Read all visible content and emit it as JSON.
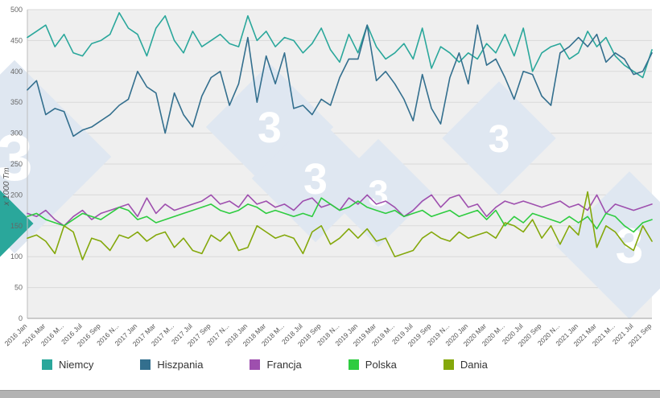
{
  "chart_data": {
    "type": "line",
    "title": "",
    "xlabel": "",
    "ylabel": "x 1000 Tm",
    "ylim": [
      0,
      500
    ],
    "y_ticks": [
      0,
      50,
      100,
      150,
      200,
      250,
      300,
      350,
      400,
      450,
      500
    ],
    "grid": true,
    "legend_position": "bottom",
    "categories": [
      "2016 Jan",
      "2016 Feb",
      "2016 Mar",
      "2016 Apr",
      "2016 May",
      "2016 Jun",
      "2016 Jul",
      "2016 Aug",
      "2016 Sep",
      "2016 Oct",
      "2016 Nov",
      "2016 Dec",
      "2017 Jan",
      "2017 Feb",
      "2017 Mar",
      "2017 Apr",
      "2017 May",
      "2017 Jun",
      "2017 Jul",
      "2017 Aug",
      "2017 Sep",
      "2017 Oct",
      "2017 Nov",
      "2017 Dec",
      "2018 Jan",
      "2018 Feb",
      "2018 Mar",
      "2018 Apr",
      "2018 May",
      "2018 Jun",
      "2018 Jul",
      "2018 Aug",
      "2018 Sep",
      "2018 Oct",
      "2018 Nov",
      "2018 Dec",
      "2019 Jan",
      "2019 Feb",
      "2019 Mar",
      "2019 Apr",
      "2019 May",
      "2019 Jun",
      "2019 Jul",
      "2019 Aug",
      "2019 Sep",
      "2019 Oct",
      "2019 Nov",
      "2019 Dec",
      "2020 Jan",
      "2020 Feb",
      "2020 Mar",
      "2020 Apr",
      "2020 May",
      "2020 Jun",
      "2020 Jul",
      "2020 Aug",
      "2020 Sep",
      "2020 Oct",
      "2020 Nov",
      "2020 Dec",
      "2021 Jan",
      "2021 Feb",
      "2021 Mar",
      "2021 Apr",
      "2021 May",
      "2021 Jun",
      "2021 Jul",
      "2021 Aug",
      "2021 Sep"
    ],
    "tick_labels": [
      "2016 Jan",
      "2016 Mar",
      "2016 M...",
      "2016 Jul",
      "2016 Sep",
      "2016 N...",
      "2017 Jan",
      "2017 Mar",
      "2017 M...",
      "2017 Jul",
      "2017 Sep",
      "2017 N...",
      "2018 Jan",
      "2018 Mar",
      "2018 M...",
      "2018 Jul",
      "2018 Sep",
      "2018 N...",
      "2019 Jan",
      "2019 Mar",
      "2019 M...",
      "2019 Jul",
      "2019 Sep",
      "2019 N...",
      "2020 Jan",
      "2020 Mar",
      "2020 M...",
      "2020 Jul",
      "2020 Sep",
      "2020 N...",
      "2021 Jan",
      "2021 Mar",
      "2021 M...",
      "2021 Jul",
      "2021 Sep"
    ],
    "series": [
      {
        "name": "Niemcy",
        "color": "#2aa79b",
        "values": [
          455,
          465,
          475,
          440,
          460,
          430,
          425,
          445,
          450,
          460,
          495,
          470,
          460,
          425,
          470,
          490,
          450,
          430,
          465,
          440,
          450,
          460,
          445,
          440,
          490,
          450,
          465,
          440,
          455,
          450,
          430,
          445,
          470,
          435,
          415,
          460,
          430,
          475,
          440,
          420,
          430,
          445,
          420,
          470,
          405,
          440,
          430,
          415,
          430,
          420,
          445,
          430,
          460,
          425,
          470,
          400,
          430,
          440,
          445,
          420,
          430,
          465,
          440,
          455,
          425,
          410,
          400,
          390,
          435
        ]
      },
      {
        "name": "Hiszpania",
        "color": "#336f8e",
        "values": [
          370,
          385,
          330,
          340,
          335,
          295,
          305,
          310,
          320,
          330,
          345,
          355,
          400,
          375,
          365,
          300,
          365,
          330,
          310,
          360,
          390,
          400,
          345,
          380,
          455,
          350,
          425,
          380,
          430,
          340,
          345,
          330,
          355,
          345,
          390,
          420,
          420,
          475,
          385,
          400,
          380,
          355,
          320,
          395,
          340,
          315,
          390,
          430,
          380,
          475,
          410,
          420,
          390,
          355,
          400,
          395,
          360,
          345,
          430,
          440,
          455,
          440,
          460,
          415,
          430,
          420,
          395,
          400,
          430
        ]
      },
      {
        "name": "Francja",
        "color": "#9e4fae",
        "values": [
          170,
          165,
          175,
          160,
          150,
          165,
          175,
          160,
          170,
          175,
          180,
          185,
          165,
          195,
          170,
          185,
          175,
          180,
          185,
          190,
          200,
          185,
          190,
          180,
          200,
          185,
          190,
          180,
          185,
          175,
          190,
          195,
          180,
          185,
          175,
          195,
          185,
          200,
          185,
          190,
          180,
          165,
          175,
          190,
          200,
          180,
          195,
          200,
          180,
          185,
          165,
          180,
          190,
          185,
          190,
          185,
          180,
          185,
          190,
          180,
          185,
          175,
          200,
          170,
          185,
          180,
          175,
          180,
          185
        ]
      },
      {
        "name": "Polska",
        "color": "#2ecc40",
        "values": [
          165,
          170,
          160,
          155,
          150,
          160,
          170,
          165,
          160,
          170,
          180,
          175,
          160,
          165,
          155,
          160,
          165,
          170,
          175,
          180,
          185,
          175,
          170,
          175,
          185,
          180,
          170,
          175,
          170,
          165,
          170,
          165,
          195,
          185,
          175,
          180,
          190,
          180,
          175,
          170,
          175,
          165,
          170,
          175,
          165,
          170,
          175,
          165,
          170,
          175,
          160,
          175,
          150,
          165,
          155,
          170,
          165,
          160,
          155,
          165,
          155,
          165,
          145,
          170,
          165,
          150,
          140,
          155,
          160
        ]
      },
      {
        "name": "Dania",
        "color": "#84a80b",
        "values": [
          130,
          135,
          125,
          105,
          150,
          140,
          95,
          130,
          125,
          110,
          135,
          130,
          140,
          125,
          135,
          140,
          115,
          130,
          110,
          105,
          135,
          125,
          140,
          110,
          115,
          150,
          140,
          130,
          135,
          130,
          105,
          140,
          150,
          120,
          130,
          145,
          130,
          145,
          125,
          130,
          100,
          105,
          110,
          130,
          140,
          130,
          125,
          140,
          130,
          135,
          140,
          130,
          155,
          150,
          140,
          160,
          130,
          150,
          120,
          150,
          135,
          205,
          115,
          150,
          140,
          120,
          110,
          150,
          125
        ]
      }
    ]
  },
  "watermark": {
    "glyph": "3",
    "diamond_color": "#dfe7f1",
    "teal_color": "#2aa79b"
  }
}
